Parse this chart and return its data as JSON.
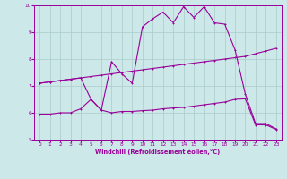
{
  "xlabel": "Windchill (Refroidissement éolien,°C)",
  "xlim": [
    -0.5,
    23.5
  ],
  "ylim": [
    5,
    10
  ],
  "xticks": [
    0,
    1,
    2,
    3,
    4,
    5,
    6,
    7,
    8,
    9,
    10,
    11,
    12,
    13,
    14,
    15,
    16,
    17,
    18,
    19,
    20,
    21,
    22,
    23
  ],
  "yticks": [
    5,
    6,
    7,
    8,
    9,
    10
  ],
  "bg_color": "#cce8e8",
  "grid_color": "#aacccc",
  "line_color": "#990099",
  "line1": {
    "x": [
      0,
      1,
      2,
      3,
      4,
      5,
      6,
      7,
      8,
      9,
      10,
      11,
      12,
      13,
      14,
      15,
      16,
      17,
      18,
      19,
      20,
      21,
      22,
      23
    ],
    "y": [
      7.1,
      7.15,
      7.2,
      7.25,
      7.3,
      7.35,
      7.4,
      7.45,
      7.5,
      7.55,
      7.6,
      7.65,
      7.7,
      7.75,
      7.8,
      7.85,
      7.9,
      7.95,
      8.0,
      8.05,
      8.1,
      8.2,
      8.3,
      8.4
    ]
  },
  "line2": {
    "x": [
      0,
      1,
      2,
      3,
      4,
      5,
      6,
      7,
      8,
      9,
      10,
      11,
      12,
      13,
      14,
      15,
      16,
      17,
      18,
      19,
      20,
      21,
      22,
      23
    ],
    "y": [
      7.1,
      7.15,
      7.2,
      7.25,
      7.3,
      6.5,
      6.1,
      7.9,
      7.45,
      7.1,
      9.2,
      9.5,
      9.75,
      9.35,
      9.95,
      9.55,
      9.95,
      9.35,
      9.3,
      8.35,
      6.7,
      5.6,
      5.6,
      5.4
    ]
  },
  "line3": {
    "x": [
      0,
      1,
      2,
      3,
      4,
      5,
      6,
      7,
      8,
      9,
      10,
      11,
      12,
      13,
      14,
      15,
      16,
      17,
      18,
      19,
      20,
      21,
      22,
      23
    ],
    "y": [
      5.95,
      5.95,
      6.0,
      6.0,
      6.15,
      6.5,
      6.1,
      6.0,
      6.05,
      6.05,
      6.08,
      6.1,
      6.15,
      6.18,
      6.2,
      6.25,
      6.3,
      6.35,
      6.4,
      6.5,
      6.52,
      5.55,
      5.55,
      5.38
    ]
  }
}
